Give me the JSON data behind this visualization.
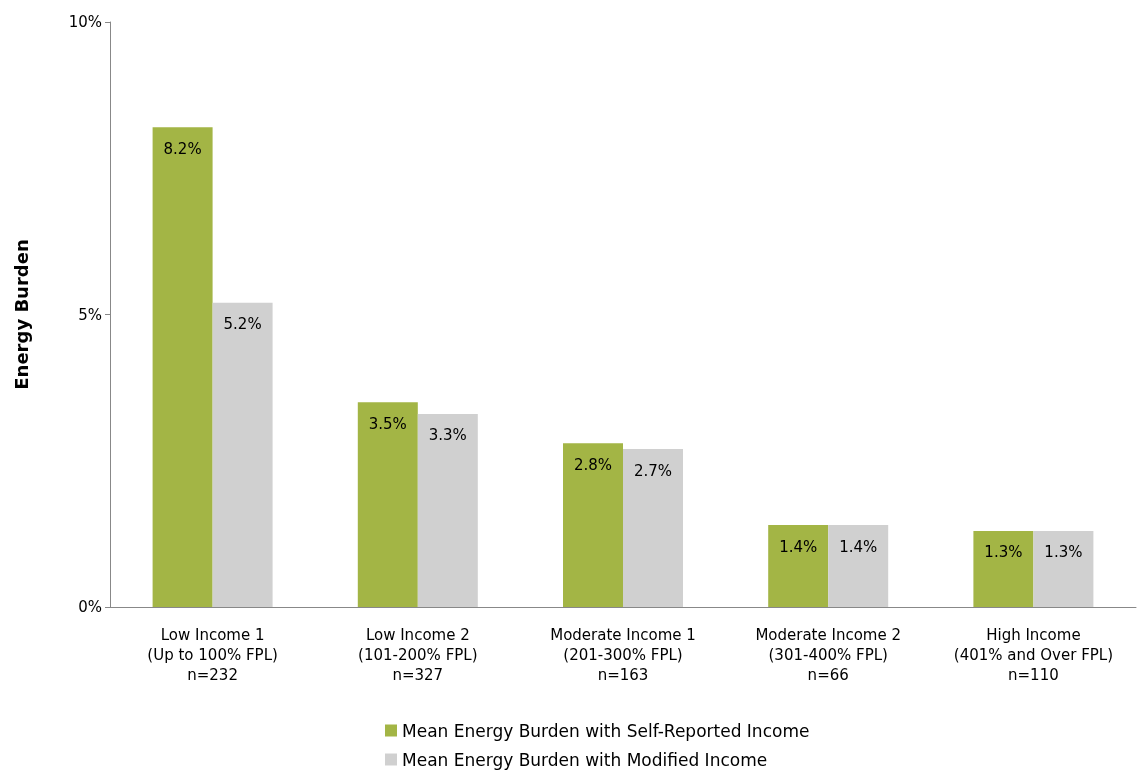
{
  "chart_data": {
    "type": "bar",
    "ylabel": "Energy Burden",
    "categories": [
      "Low Income 1\n(Up to 100% FPL)\nn=232",
      "Low Income 2\n(101-200% FPL)\nn=327",
      "Moderate Income 1\n(201-300% FPL)\nn=163",
      "Moderate Income 2\n(301-400% FPL)\nn=66",
      "High Income\n(401% and Over FPL)\nn=110"
    ],
    "series": [
      {
        "name": "Mean Energy Burden with Self-Reported Income",
        "color": "#a3b545",
        "values": [
          8.2,
          3.5,
          2.8,
          1.4,
          1.3
        ],
        "value_labels": [
          "8.2%",
          "3.5%",
          "2.8%",
          "1.4%",
          "1.3%"
        ]
      },
      {
        "name": "Mean Energy Burden with Modified Income",
        "color": "#d0d0d0",
        "values": [
          5.2,
          3.3,
          2.7,
          1.4,
          1.3
        ],
        "value_labels": [
          "5.2%",
          "3.3%",
          "2.7%",
          "1.4%",
          "1.3%"
        ]
      }
    ],
    "ylim": [
      0,
      10
    ],
    "yticks": [
      {
        "value": 0,
        "label": "0%"
      },
      {
        "value": 5,
        "label": "5%"
      },
      {
        "value": 10,
        "label": "10%"
      }
    ],
    "grid": false,
    "legend": "bottom"
  }
}
